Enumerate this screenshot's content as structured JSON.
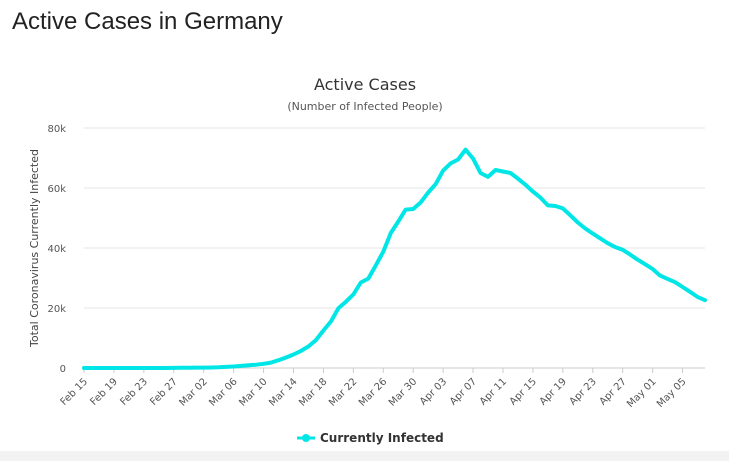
{
  "page": {
    "title": "Active Cases in Germany"
  },
  "chart_data": {
    "type": "line",
    "title": "Active Cases",
    "subtitle": "(Number of Infected People)",
    "xlabel": "",
    "ylabel": "Total Coronavirus Currently Infected",
    "ylim": [
      0,
      80000
    ],
    "yticks": [
      0,
      20000,
      40000,
      60000,
      80000
    ],
    "ytick_labels": [
      "0",
      "20k",
      "40k",
      "60k",
      "80k"
    ],
    "xtick_labels": [
      "Feb 15",
      "Feb 19",
      "Feb 23",
      "Feb 27",
      "Mar 02",
      "Mar 06",
      "Mar 10",
      "Mar 14",
      "Mar 18",
      "Mar 22",
      "Mar 26",
      "Mar 30",
      "Apr 03",
      "Apr 07",
      "Apr 11",
      "Apr 15",
      "Apr 19",
      "Apr 23",
      "Apr 27",
      "May 01",
      "May 05"
    ],
    "x": [
      "Feb 15",
      "Feb 16",
      "Feb 17",
      "Feb 18",
      "Feb 19",
      "Feb 20",
      "Feb 21",
      "Feb 22",
      "Feb 23",
      "Feb 24",
      "Feb 25",
      "Feb 26",
      "Feb 27",
      "Feb 28",
      "Feb 29",
      "Mar 01",
      "Mar 02",
      "Mar 03",
      "Mar 04",
      "Mar 05",
      "Mar 06",
      "Mar 07",
      "Mar 08",
      "Mar 09",
      "Mar 10",
      "Mar 11",
      "Mar 12",
      "Mar 13",
      "Mar 14",
      "Mar 15",
      "Mar 16",
      "Mar 17",
      "Mar 18",
      "Mar 19",
      "Mar 20",
      "Mar 21",
      "Mar 22",
      "Mar 23",
      "Mar 24",
      "Mar 25",
      "Mar 26",
      "Mar 27",
      "Mar 28",
      "Mar 29",
      "Mar 30",
      "Mar 31",
      "Apr 01",
      "Apr 02",
      "Apr 03",
      "Apr 04",
      "Apr 05",
      "Apr 06",
      "Apr 07",
      "Apr 08",
      "Apr 09",
      "Apr 10",
      "Apr 11",
      "Apr 12",
      "Apr 13",
      "Apr 14",
      "Apr 15",
      "Apr 16",
      "Apr 17",
      "Apr 18",
      "Apr 19",
      "Apr 20",
      "Apr 21",
      "Apr 22",
      "Apr 23",
      "Apr 24",
      "Apr 25",
      "Apr 26",
      "Apr 27",
      "Apr 28",
      "Apr 29",
      "Apr 30",
      "May 01",
      "May 02",
      "May 03",
      "May 04",
      "May 05",
      "May 06",
      "May 07",
      "May 08"
    ],
    "series": [
      {
        "name": "Currently Infected",
        "color": "#00e6e6",
        "values": [
          0,
          0,
          0,
          0,
          0,
          0,
          0,
          0,
          0,
          0,
          0,
          0,
          50,
          80,
          100,
          120,
          150,
          180,
          250,
          350,
          500,
          700,
          900,
          1100,
          1400,
          1800,
          2600,
          3500,
          4500,
          5700,
          7200,
          9300,
          12500,
          15500,
          19900,
          22100,
          24500,
          28500,
          29800,
          34200,
          38800,
          45000,
          48800,
          52800,
          53000,
          55200,
          58500,
          61300,
          65800,
          68200,
          69500,
          72800,
          69800,
          65000,
          63700,
          66000,
          65500,
          65000,
          63100,
          61100,
          58800,
          56800,
          54200,
          54000,
          53200,
          50900,
          48500,
          46500,
          44800,
          43200,
          41600,
          40300,
          39400,
          37800,
          36100,
          34600,
          33000,
          30800,
          29700,
          28600,
          27000,
          25400,
          23700,
          22600
        ]
      }
    ],
    "legend": {
      "position": "bottom-center",
      "label": "Currently Infected"
    },
    "grid": true
  }
}
